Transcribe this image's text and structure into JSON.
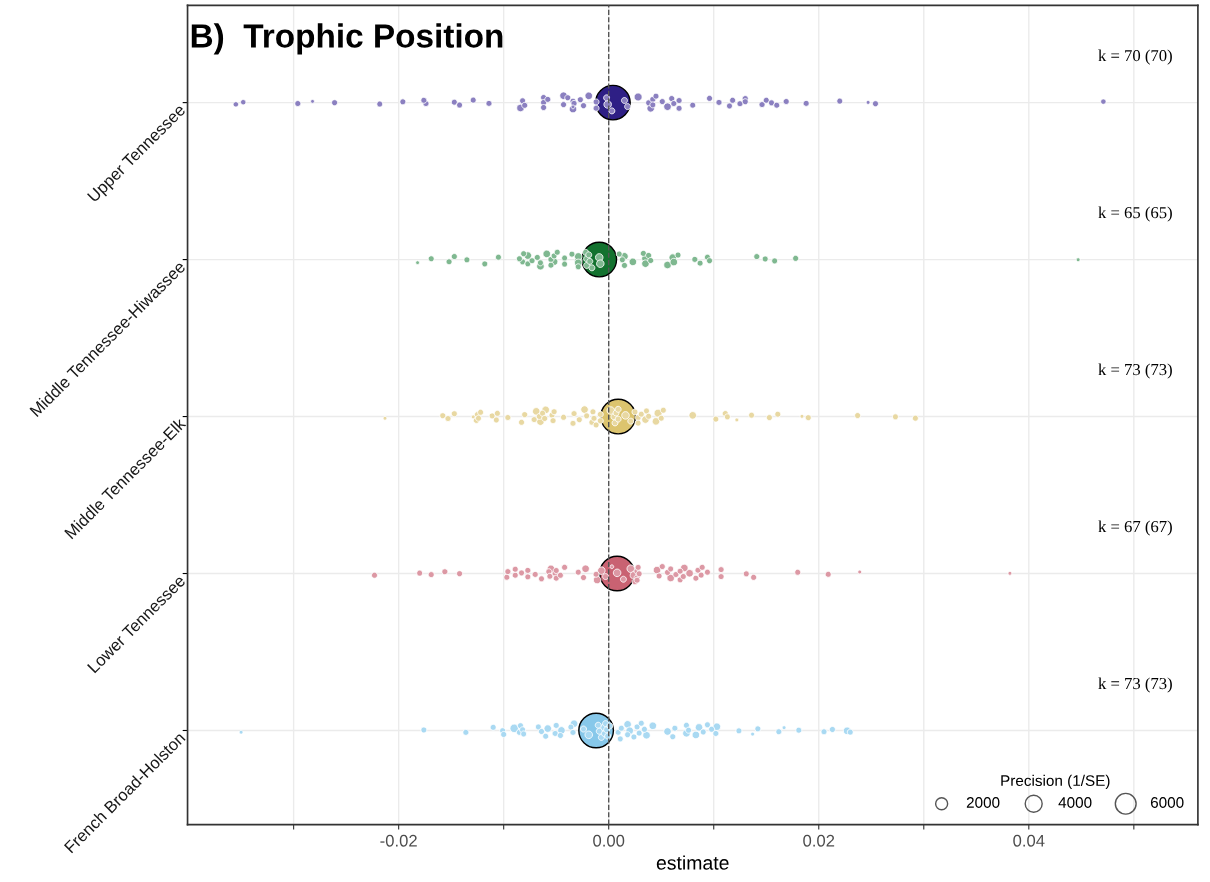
{
  "chart_data": {
    "type": "bubble",
    "orientation": "horizontal",
    "title": "B)  Trophic Position",
    "xlabel": "estimate",
    "legend_title": "Precision (1/SE)",
    "size_legend": [
      2000,
      4000,
      6000
    ],
    "grid": true,
    "marker": "circle",
    "categories": [
      "Upper Tennessee",
      "Middle Tennessee-Hiwassee",
      "Middle Tennessee-Elk",
      "Lower Tennessee",
      "French Broad-Holston"
    ],
    "xlim": [
      -0.0401,
      0.0561
    ],
    "xticks": [
      {
        "value": -0.03,
        "label": null
      },
      {
        "value": -0.02,
        "label": "-0.02"
      },
      {
        "value": -0.01,
        "label": null
      },
      {
        "value": 0,
        "label": "0.00"
      },
      {
        "value": 0.01,
        "label": null
      },
      {
        "value": 0.02,
        "label": "0.02"
      },
      {
        "value": 0.03,
        "label": null
      },
      {
        "value": 0.04,
        "label": "0.04"
      },
      {
        "value": 0.05,
        "label": null
      }
    ],
    "ref_lines": [
      {
        "axis": "x",
        "value": 0,
        "color": "#555555",
        "line_style": "dashed"
      }
    ],
    "annotations": [
      "k = 70 (70)",
      "k = 65 (65)",
      "k = 73 (73)",
      "k = 67 (67)",
      "k = 73 (73)"
    ],
    "series": [
      {
        "color": "#8b80c0",
        "x": [
          "Upper Tennessee",
          "Upper Tennessee",
          "Upper Tennessee",
          "Upper Tennessee",
          "Upper Tennessee",
          "Upper Tennessee",
          "Upper Tennessee",
          "Upper Tennessee",
          "Upper Tennessee",
          "Upper Tennessee",
          "Upper Tennessee",
          "Upper Tennessee",
          "Upper Tennessee",
          "Upper Tennessee",
          "Upper Tennessee",
          "Upper Tennessee",
          "Upper Tennessee",
          "Upper Tennessee",
          "Upper Tennessee",
          "Upper Tennessee",
          "Upper Tennessee",
          "Upper Tennessee",
          "Upper Tennessee",
          "Upper Tennessee",
          "Upper Tennessee",
          "Upper Tennessee",
          "Upper Tennessee",
          "Upper Tennessee",
          "Upper Tennessee",
          "Upper Tennessee",
          "Upper Tennessee",
          "Upper Tennessee",
          "Upper Tennessee",
          "Upper Tennessee",
          "Upper Tennessee",
          "Upper Tennessee",
          "Upper Tennessee",
          "Upper Tennessee",
          "Upper Tennessee",
          "Upper Tennessee",
          "Upper Tennessee",
          "Upper Tennessee",
          "Upper Tennessee",
          "Upper Tennessee",
          "Upper Tennessee",
          "Upper Tennessee",
          "Upper Tennessee",
          "Upper Tennessee",
          "Upper Tennessee",
          "Upper Tennessee",
          "Upper Tennessee",
          "Upper Tennessee",
          "Upper Tennessee",
          "Upper Tennessee",
          "Upper Tennessee",
          "Upper Tennessee",
          "Upper Tennessee",
          "Upper Tennessee",
          "Upper Tennessee",
          "Upper Tennessee",
          "Upper Tennessee",
          "Upper Tennessee",
          "Upper Tennessee",
          "Upper Tennessee",
          "Upper Tennessee",
          "Upper Tennessee",
          "Upper Tennessee"
        ],
        "values": [
          -0.0355,
          -0.0348,
          -0.0296,
          -0.0282,
          -0.0261,
          -0.0218,
          -0.0196,
          -0.0174,
          -0.0176,
          -0.0147,
          -0.0142,
          -0.0129,
          -0.0114,
          -0.0084,
          -0.0082,
          -0.008,
          -0.0062,
          -0.0062,
          -0.0062,
          -0.0058,
          -0.0043,
          -0.0043,
          -0.0034,
          -0.0034,
          -0.0039,
          -0.0033,
          -0.0034,
          -0.0027,
          -0.0024,
          -0.0019,
          -0.0012,
          -0.0012,
          -0.0002,
          -0.0001,
          0.0003,
          0.0015,
          0.0018,
          0.0028,
          0.0038,
          0.004,
          0.0042,
          0.0042,
          0.0045,
          0.0051,
          0.0056,
          0.006,
          0.0062,
          0.0067,
          0.0067,
          0.008,
          0.0096,
          0.0105,
          0.0115,
          0.0118,
          0.0125,
          0.013,
          0.013,
          0.0146,
          0.015,
          0.0155,
          0.016,
          0.0169,
          0.0188,
          0.022,
          0.0247,
          0.0254,
          0.0471
        ],
        "sizes": [
          400,
          400,
          500,
          200,
          500,
          500,
          500,
          500,
          500,
          500,
          500,
          500,
          500,
          800,
          500,
          500,
          500,
          500,
          500,
          500,
          500,
          800,
          500,
          200,
          500,
          500,
          800,
          500,
          500,
          800,
          500,
          500,
          500,
          800,
          500,
          500,
          500,
          900,
          500,
          800,
          500,
          500,
          500,
          500,
          800,
          500,
          500,
          500,
          500,
          500,
          500,
          500,
          500,
          500,
          500,
          500,
          500,
          500,
          500,
          500,
          500,
          500,
          500,
          500,
          200,
          500,
          400
        ]
      },
      {
        "color": "#7fb890",
        "x": [
          "Middle Tennessee-Hiwassee",
          "Middle Tennessee-Hiwassee",
          "Middle Tennessee-Hiwassee",
          "Middle Tennessee-Hiwassee",
          "Middle Tennessee-Hiwassee",
          "Middle Tennessee-Hiwassee",
          "Middle Tennessee-Hiwassee",
          "Middle Tennessee-Hiwassee",
          "Middle Tennessee-Hiwassee",
          "Middle Tennessee-Hiwassee",
          "Middle Tennessee-Hiwassee",
          "Middle Tennessee-Hiwassee",
          "Middle Tennessee-Hiwassee",
          "Middle Tennessee-Hiwassee",
          "Middle Tennessee-Hiwassee",
          "Middle Tennessee-Hiwassee",
          "Middle Tennessee-Hiwassee",
          "Middle Tennessee-Hiwassee",
          "Middle Tennessee-Hiwassee",
          "Middle Tennessee-Hiwassee",
          "Middle Tennessee-Hiwassee",
          "Middle Tennessee-Hiwassee",
          "Middle Tennessee-Hiwassee",
          "Middle Tennessee-Hiwassee",
          "Middle Tennessee-Hiwassee",
          "Middle Tennessee-Hiwassee",
          "Middle Tennessee-Hiwassee",
          "Middle Tennessee-Hiwassee",
          "Middle Tennessee-Hiwassee",
          "Middle Tennessee-Hiwassee",
          "Middle Tennessee-Hiwassee",
          "Middle Tennessee-Hiwassee",
          "Middle Tennessee-Hiwassee",
          "Middle Tennessee-Hiwassee",
          "Middle Tennessee-Hiwassee",
          "Middle Tennessee-Hiwassee",
          "Middle Tennessee-Hiwassee",
          "Middle Tennessee-Hiwassee",
          "Middle Tennessee-Hiwassee",
          "Middle Tennessee-Hiwassee",
          "Middle Tennessee-Hiwassee",
          "Middle Tennessee-Hiwassee",
          "Middle Tennessee-Hiwassee",
          "Middle Tennessee-Hiwassee",
          "Middle Tennessee-Hiwassee",
          "Middle Tennessee-Hiwassee",
          "Middle Tennessee-Hiwassee",
          "Middle Tennessee-Hiwassee",
          "Middle Tennessee-Hiwassee",
          "Middle Tennessee-Hiwassee",
          "Middle Tennessee-Hiwassee",
          "Middle Tennessee-Hiwassee",
          "Middle Tennessee-Hiwassee",
          "Middle Tennessee-Hiwassee",
          "Middle Tennessee-Hiwassee",
          "Middle Tennessee-Hiwassee",
          "Middle Tennessee-Hiwassee",
          "Middle Tennessee-Hiwassee",
          "Middle Tennessee-Hiwassee",
          "Middle Tennessee-Hiwassee"
        ],
        "values": [
          -0.0182,
          -0.0169,
          -0.0152,
          -0.0147,
          -0.0135,
          -0.0118,
          -0.0105,
          -0.0082,
          -0.0081,
          -0.0085,
          -0.0077,
          -0.0077,
          -0.0073,
          -0.0065,
          -0.0068,
          -0.0065,
          -0.0059,
          -0.0055,
          -0.0055,
          -0.0052,
          -0.0052,
          -0.0049,
          -0.0042,
          -0.0042,
          -0.0035,
          -0.0029,
          -0.0029,
          -0.0029,
          -0.0029,
          -0.0022,
          -0.0021,
          -0.0021,
          -0.0019,
          -0.0018,
          -0.0016,
          -0.0009,
          -0.0008,
          0.001,
          0.0013,
          0.0015,
          0.0015,
          0.0023,
          0.0033,
          0.0035,
          0.0035,
          0.0038,
          0.004,
          0.0056,
          0.0061,
          0.0062,
          0.0066,
          0.0082,
          0.0087,
          0.0094,
          0.0096,
          0.0141,
          0.0149,
          0.0158,
          0.0178,
          0.0447
        ],
        "sizes": [
          200,
          500,
          500,
          500,
          500,
          500,
          500,
          500,
          500,
          500,
          500,
          800,
          500,
          800,
          500,
          500,
          800,
          500,
          500,
          500,
          800,
          500,
          500,
          500,
          500,
          800,
          500,
          800,
          800,
          500,
          500,
          500,
          500,
          500,
          500,
          800,
          800,
          500,
          500,
          500,
          800,
          800,
          500,
          800,
          800,
          500,
          500,
          800,
          800,
          800,
          500,
          500,
          500,
          500,
          500,
          500,
          500,
          500,
          500,
          200
        ]
      },
      {
        "color": "#e8d8a2",
        "x": [
          "Middle Tennessee-Elk",
          "Middle Tennessee-Elk",
          "Middle Tennessee-Elk",
          "Middle Tennessee-Elk",
          "Middle Tennessee-Elk",
          "Middle Tennessee-Elk",
          "Middle Tennessee-Elk",
          "Middle Tennessee-Elk",
          "Middle Tennessee-Elk",
          "Middle Tennessee-Elk",
          "Middle Tennessee-Elk",
          "Middle Tennessee-Elk",
          "Middle Tennessee-Elk",
          "Middle Tennessee-Elk",
          "Middle Tennessee-Elk",
          "Middle Tennessee-Elk",
          "Middle Tennessee-Elk",
          "Middle Tennessee-Elk",
          "Middle Tennessee-Elk",
          "Middle Tennessee-Elk",
          "Middle Tennessee-Elk",
          "Middle Tennessee-Elk",
          "Middle Tennessee-Elk",
          "Middle Tennessee-Elk",
          "Middle Tennessee-Elk",
          "Middle Tennessee-Elk",
          "Middle Tennessee-Elk",
          "Middle Tennessee-Elk",
          "Middle Tennessee-Elk",
          "Middle Tennessee-Elk",
          "Middle Tennessee-Elk",
          "Middle Tennessee-Elk",
          "Middle Tennessee-Elk",
          "Middle Tennessee-Elk",
          "Middle Tennessee-Elk",
          "Middle Tennessee-Elk",
          "Middle Tennessee-Elk",
          "Middle Tennessee-Elk",
          "Middle Tennessee-Elk",
          "Middle Tennessee-Elk",
          "Middle Tennessee-Elk",
          "Middle Tennessee-Elk",
          "Middle Tennessee-Elk",
          "Middle Tennessee-Elk",
          "Middle Tennessee-Elk",
          "Middle Tennessee-Elk",
          "Middle Tennessee-Elk",
          "Middle Tennessee-Elk",
          "Middle Tennessee-Elk",
          "Middle Tennessee-Elk",
          "Middle Tennessee-Elk",
          "Middle Tennessee-Elk",
          "Middle Tennessee-Elk",
          "Middle Tennessee-Elk",
          "Middle Tennessee-Elk",
          "Middle Tennessee-Elk",
          "Middle Tennessee-Elk",
          "Middle Tennessee-Elk",
          "Middle Tennessee-Elk",
          "Middle Tennessee-Elk",
          "Middle Tennessee-Elk",
          "Middle Tennessee-Elk",
          "Middle Tennessee-Elk",
          "Middle Tennessee-Elk",
          "Middle Tennessee-Elk",
          "Middle Tennessee-Elk",
          "Middle Tennessee-Elk",
          "Middle Tennessee-Elk",
          "Middle Tennessee-Elk"
        ],
        "values": [
          -0.0213,
          -0.0158,
          -0.0153,
          -0.0147,
          -0.0129,
          -0.0126,
          -0.0125,
          -0.0124,
          -0.0122,
          -0.0111,
          -0.0107,
          -0.0106,
          -0.0096,
          -0.0083,
          -0.008,
          -0.0071,
          -0.0069,
          -0.0066,
          -0.0065,
          -0.0063,
          -0.0061,
          -0.006,
          -0.0054,
          -0.0053,
          -0.0052,
          -0.0043,
          -0.0034,
          -0.0033,
          -0.0028,
          -0.0023,
          -0.0021,
          -0.0016,
          -0.0015,
          -0.0014,
          -0.0012,
          -0.0008,
          -0.0008,
          0.0002,
          0.0005,
          0.0006,
          0.0007,
          0.0009,
          0.0009,
          0.0016,
          0.0021,
          0.0025,
          0.0028,
          0.0028,
          0.0031,
          0.0035,
          0.0036,
          0.0038,
          0.0045,
          0.0047,
          0.005,
          0.0052,
          0.008,
          0.0102,
          0.0111,
          0.0113,
          0.0122,
          0.0136,
          0.0153,
          0.0161,
          0.0184,
          0.019,
          0.0237,
          0.0273,
          0.0292
        ],
        "sizes": [
          200,
          500,
          500,
          500,
          200,
          500,
          500,
          500,
          500,
          500,
          500,
          500,
          500,
          500,
          500,
          500,
          800,
          500,
          800,
          500,
          500,
          800,
          500,
          500,
          500,
          500,
          500,
          500,
          500,
          800,
          500,
          500,
          500,
          500,
          500,
          500,
          500,
          800,
          500,
          500,
          500,
          500,
          500,
          800,
          500,
          500,
          500,
          500,
          500,
          800,
          500,
          500,
          800,
          900,
          500,
          500,
          800,
          500,
          500,
          500,
          200,
          500,
          500,
          500,
          200,
          500,
          500,
          500,
          500
        ]
      },
      {
        "color": "#dc98a4",
        "x": [
          "Lower Tennessee",
          "Lower Tennessee",
          "Lower Tennessee",
          "Lower Tennessee",
          "Lower Tennessee",
          "Lower Tennessee",
          "Lower Tennessee",
          "Lower Tennessee",
          "Lower Tennessee",
          "Lower Tennessee",
          "Lower Tennessee",
          "Lower Tennessee",
          "Lower Tennessee",
          "Lower Tennessee",
          "Lower Tennessee",
          "Lower Tennessee",
          "Lower Tennessee",
          "Lower Tennessee",
          "Lower Tennessee",
          "Lower Tennessee",
          "Lower Tennessee",
          "Lower Tennessee",
          "Lower Tennessee",
          "Lower Tennessee",
          "Lower Tennessee",
          "Lower Tennessee",
          "Lower Tennessee",
          "Lower Tennessee",
          "Lower Tennessee",
          "Lower Tennessee",
          "Lower Tennessee",
          "Lower Tennessee",
          "Lower Tennessee",
          "Lower Tennessee",
          "Lower Tennessee",
          "Lower Tennessee",
          "Lower Tennessee",
          "Lower Tennessee",
          "Lower Tennessee",
          "Lower Tennessee",
          "Lower Tennessee",
          "Lower Tennessee",
          "Lower Tennessee",
          "Lower Tennessee",
          "Lower Tennessee",
          "Lower Tennessee",
          "Lower Tennessee",
          "Lower Tennessee",
          "Lower Tennessee",
          "Lower Tennessee",
          "Lower Tennessee",
          "Lower Tennessee",
          "Lower Tennessee",
          "Lower Tennessee",
          "Lower Tennessee",
          "Lower Tennessee",
          "Lower Tennessee",
          "Lower Tennessee",
          "Lower Tennessee",
          "Lower Tennessee",
          "Lower Tennessee",
          "Lower Tennessee",
          "Lower Tennessee",
          "Lower Tennessee",
          "Lower Tennessee"
        ],
        "values": [
          -0.0223,
          -0.018,
          -0.0169,
          -0.0156,
          -0.0142,
          -0.0097,
          -0.0096,
          -0.0089,
          -0.0089,
          -0.0083,
          -0.0077,
          -0.0077,
          -0.007,
          -0.0064,
          -0.0057,
          -0.0056,
          -0.0055,
          -0.0051,
          -0.005,
          -0.005,
          -0.0046,
          -0.0042,
          -0.0029,
          -0.0024,
          -0.0022,
          -0.0012,
          -0.0011,
          -0.0007,
          -0.0003,
          0.0003,
          0.0008,
          0.0014,
          0.0021,
          0.0024,
          0.0025,
          0.0027,
          0.0027,
          0.0028,
          0.0029,
          0.0027,
          0.0046,
          0.0048,
          0.0051,
          0.0056,
          0.0059,
          0.0059,
          0.0064,
          0.0068,
          0.0068,
          0.0071,
          0.0072,
          0.0077,
          0.0083,
          0.0085,
          0.0088,
          0.0089,
          0.0094,
          0.0107,
          0.0107,
          0.0131,
          0.0138,
          0.018,
          0.0209,
          0.0239,
          0.0382
        ],
        "sizes": [
          500,
          500,
          500,
          500,
          500,
          500,
          500,
          500,
          500,
          500,
          500,
          500,
          500,
          500,
          500,
          500,
          800,
          500,
          500,
          500,
          500,
          500,
          500,
          500,
          800,
          500,
          800,
          800,
          500,
          200,
          800,
          500,
          800,
          800,
          500,
          500,
          500,
          500,
          500,
          500,
          800,
          500,
          500,
          500,
          800,
          500,
          500,
          500,
          500,
          500,
          800,
          800,
          500,
          500,
          500,
          500,
          500,
          500,
          500,
          500,
          500,
          500,
          500,
          200,
          200
        ]
      },
      {
        "color": "#a9d9f2",
        "x": [
          "French Broad-Holston",
          "French Broad-Holston",
          "French Broad-Holston",
          "French Broad-Holston",
          "French Broad-Holston",
          "French Broad-Holston",
          "French Broad-Holston",
          "French Broad-Holston",
          "French Broad-Holston",
          "French Broad-Holston",
          "French Broad-Holston",
          "French Broad-Holston",
          "French Broad-Holston",
          "French Broad-Holston",
          "French Broad-Holston",
          "French Broad-Holston",
          "French Broad-Holston",
          "French Broad-Holston",
          "French Broad-Holston",
          "French Broad-Holston",
          "French Broad-Holston",
          "French Broad-Holston",
          "French Broad-Holston",
          "French Broad-Holston",
          "French Broad-Holston",
          "French Broad-Holston",
          "French Broad-Holston",
          "French Broad-Holston",
          "French Broad-Holston",
          "French Broad-Holston",
          "French Broad-Holston",
          "French Broad-Holston",
          "French Broad-Holston",
          "French Broad-Holston",
          "French Broad-Holston",
          "French Broad-Holston",
          "French Broad-Holston",
          "French Broad-Holston",
          "French Broad-Holston",
          "French Broad-Holston",
          "French Broad-Holston",
          "French Broad-Holston",
          "French Broad-Holston",
          "French Broad-Holston",
          "French Broad-Holston",
          "French Broad-Holston",
          "French Broad-Holston",
          "French Broad-Holston",
          "French Broad-Holston",
          "French Broad-Holston",
          "French Broad-Holston",
          "French Broad-Holston",
          "French Broad-Holston",
          "French Broad-Holston",
          "French Broad-Holston",
          "French Broad-Holston",
          "French Broad-Holston",
          "French Broad-Holston",
          "French Broad-Holston",
          "French Broad-Holston",
          "French Broad-Holston",
          "French Broad-Holston",
          "French Broad-Holston",
          "French Broad-Holston",
          "French Broad-Holston",
          "French Broad-Holston",
          "French Broad-Holston",
          "French Broad-Holston",
          "French Broad-Holston"
        ],
        "values": [
          -0.035,
          -0.0176,
          -0.0136,
          -0.011,
          -0.0101,
          -0.01,
          -0.009,
          -0.0085,
          -0.0084,
          -0.0082,
          -0.0081,
          -0.0067,
          -0.0064,
          -0.006,
          -0.0058,
          -0.0051,
          -0.005,
          -0.0045,
          -0.0046,
          -0.0036,
          -0.0034,
          -0.0033,
          -0.0024,
          -0.0019,
          -0.001,
          -0.0009,
          -0.0007,
          -0.0004,
          -0.0004,
          -0.0003,
          -0.0002,
          -0.0001,
          0.0001,
          0.0009,
          0.0011,
          0.0012,
          0.0018,
          0.0018,
          0.002,
          0.0024,
          0.0027,
          0.0029,
          0.0031,
          0.0034,
          0.0036,
          0.0042,
          0.0056,
          0.0061,
          0.0063,
          0.0074,
          0.0074,
          0.0076,
          0.0083,
          0.0086,
          0.009,
          0.0094,
          0.0098,
          0.0102,
          0.0103,
          0.0124,
          0.0137,
          0.0142,
          0.0162,
          0.0167,
          0.0181,
          0.0205,
          0.0213,
          0.0227,
          0.023
        ],
        "sizes": [
          200,
          500,
          500,
          500,
          500,
          500,
          1000,
          500,
          500,
          500,
          500,
          500,
          500,
          500,
          800,
          500,
          500,
          800,
          500,
          500,
          500,
          800,
          500,
          800,
          500,
          500,
          500,
          800,
          500,
          500,
          500,
          500,
          500,
          500,
          500,
          500,
          500,
          800,
          800,
          500,
          500,
          500,
          500,
          500,
          800,
          800,
          800,
          500,
          500,
          800,
          500,
          500,
          800,
          800,
          500,
          500,
          500,
          500,
          800,
          500,
          200,
          500,
          500,
          200,
          500,
          500,
          500,
          800,
          500
        ]
      },
      {
        "type": "scatter",
        "colors": [
          "#2e1f85",
          "#13722f",
          "#dcc46e",
          "#c96272",
          "#87c8ea"
        ],
        "x": [
          "Upper Tennessee",
          "Middle Tennessee-Hiwassee",
          "Middle Tennessee-Elk",
          "Lower Tennessee",
          "French Broad-Holston"
        ],
        "values": [
          0.0004,
          -0.0009,
          0.0009,
          0.0008,
          -0.0012
        ]
      }
    ]
  }
}
